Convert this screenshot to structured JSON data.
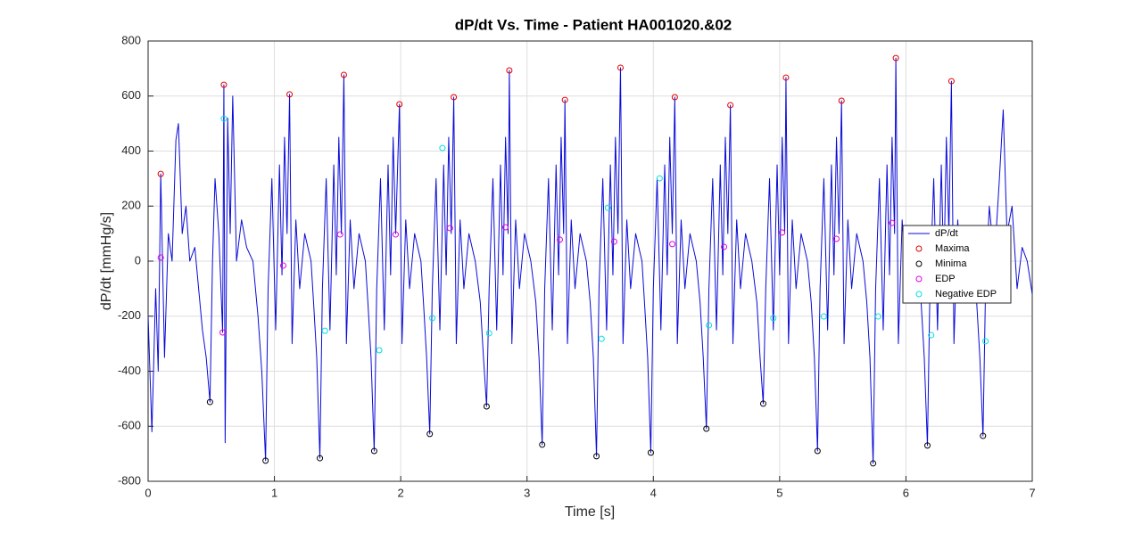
{
  "chart_data": {
    "type": "line",
    "title": "dP/dt Vs. Time - Patient HA001020.&02",
    "x_label": "Time [s]",
    "y_label": "dP/dt [mmHg/s]",
    "xlim": [
      0,
      7
    ],
    "ylim": [
      -800,
      800
    ],
    "xticks": [
      0,
      1,
      2,
      3,
      4,
      5,
      6,
      7
    ],
    "yticks": [
      -800,
      -600,
      -400,
      -200,
      0,
      200,
      400,
      600,
      800
    ],
    "grid": true,
    "legend": "right",
    "series": [
      {
        "name": "dP/dt",
        "color": "#0a0ad8",
        "style": "line",
        "x": [
          0,
          0.03,
          0.06,
          0.08,
          0.1,
          0.13,
          0.16,
          0.19,
          0.22,
          0.24,
          0.27,
          0.3,
          0.33,
          0.37,
          0.4,
          0.43,
          0.46,
          0.49,
          0.51,
          0.53,
          0.56,
          0.59,
          0.6,
          0.61,
          0.63,
          0.65,
          0.67,
          0.7,
          0.74,
          0.78,
          0.83,
          0.87,
          0.9,
          0.93,
          0.95,
          0.98,
          1.01,
          1.04,
          1.06,
          1.08,
          1.1,
          1.12,
          1.14,
          1.17,
          1.2,
          1.24,
          1.29,
          1.31,
          1.335,
          1.36,
          1.38,
          1.41,
          1.44,
          1.47,
          1.49,
          1.51,
          1.53,
          1.55,
          1.57,
          1.6,
          1.63,
          1.67,
          1.72,
          1.74,
          1.765,
          1.79,
          1.81,
          1.84,
          1.87,
          1.9,
          1.92,
          1.94,
          1.96,
          1.99,
          2.01,
          2.04,
          2.07,
          2.11,
          2.16,
          2.18,
          2.205,
          2.23,
          2.25,
          2.28,
          2.31,
          2.34,
          2.36,
          2.38,
          2.4,
          2.42,
          2.44,
          2.47,
          2.5,
          2.54,
          2.59,
          2.63,
          2.655,
          2.68,
          2.7,
          2.73,
          2.76,
          2.79,
          2.81,
          2.83,
          2.85,
          2.86,
          2.88,
          2.91,
          2.94,
          2.98,
          3.03,
          3.07,
          3.095,
          3.12,
          3.14,
          3.17,
          3.2,
          3.23,
          3.25,
          3.27,
          3.29,
          3.3,
          3.32,
          3.35,
          3.38,
          3.42,
          3.47,
          3.5,
          3.525,
          3.55,
          3.57,
          3.6,
          3.63,
          3.66,
          3.68,
          3.7,
          3.72,
          3.74,
          3.76,
          3.79,
          3.82,
          3.86,
          3.91,
          3.93,
          3.955,
          3.98,
          4.0,
          4.03,
          4.06,
          4.09,
          4.11,
          4.13,
          4.15,
          4.17,
          4.19,
          4.22,
          4.25,
          4.29,
          4.34,
          4.37,
          4.395,
          4.42,
          4.44,
          4.47,
          4.5,
          4.53,
          4.55,
          4.57,
          4.59,
          4.61,
          4.63,
          4.66,
          4.69,
          4.73,
          4.78,
          4.82,
          4.845,
          4.87,
          4.89,
          4.92,
          4.95,
          4.98,
          5.0,
          5.02,
          5.04,
          5.05,
          5.07,
          5.1,
          5.13,
          5.17,
          5.22,
          5.25,
          5.275,
          5.3,
          5.32,
          5.35,
          5.38,
          5.41,
          5.43,
          5.45,
          5.47,
          5.49,
          5.51,
          5.54,
          5.57,
          5.61,
          5.66,
          5.69,
          5.715,
          5.74,
          5.76,
          5.79,
          5.82,
          5.85,
          5.87,
          5.89,
          5.91,
          5.92,
          5.94,
          5.97,
          6.0,
          6.04,
          6.09,
          6.12,
          6.145,
          6.17,
          6.19,
          6.22,
          6.25,
          6.28,
          6.3,
          6.32,
          6.34,
          6.36,
          6.38,
          6.41,
          6.44,
          6.48,
          6.53,
          6.56,
          6.585,
          6.61,
          6.63,
          6.66,
          6.7,
          6.74,
          6.77,
          6.8,
          6.84,
          6.88,
          6.92,
          6.96,
          7.0
        ],
        "values": [
          -200,
          -620,
          -100,
          -400,
          317,
          -350,
          100,
          0,
          440,
          500,
          100,
          200,
          0,
          50,
          -100,
          -250,
          -350,
          -512,
          0,
          300,
          100,
          -259,
          641,
          -660,
          520,
          100,
          600,
          0,
          150,
          50,
          0,
          -200,
          -400,
          -725,
          -100,
          300,
          -250,
          350,
          -50,
          450,
          100,
          606,
          -300,
          150,
          -100,
          100,
          0,
          -150,
          -350,
          -716,
          -100,
          300,
          -250,
          350,
          -50,
          450,
          100,
          677,
          -300,
          150,
          -100,
          100,
          0,
          -150,
          -350,
          -690,
          -100,
          300,
          -250,
          350,
          -50,
          450,
          100,
          570,
          -300,
          150,
          -100,
          100,
          0,
          -150,
          -350,
          -628,
          -100,
          300,
          -250,
          350,
          -50,
          450,
          100,
          596,
          -300,
          150,
          -100,
          100,
          0,
          -150,
          -350,
          -528,
          -100,
          300,
          -250,
          350,
          -50,
          450,
          100,
          693,
          -300,
          150,
          -100,
          100,
          0,
          -150,
          -350,
          -667,
          -100,
          300,
          -250,
          350,
          -50,
          450,
          100,
          586,
          -300,
          150,
          -100,
          100,
          0,
          -150,
          -350,
          -709,
          -100,
          300,
          -250,
          350,
          -50,
          450,
          100,
          703,
          -300,
          150,
          -100,
          100,
          0,
          -150,
          -350,
          -696,
          -100,
          300,
          -250,
          350,
          -50,
          450,
          100,
          596,
          -300,
          150,
          -100,
          100,
          0,
          -150,
          -350,
          -609,
          -100,
          300,
          -250,
          350,
          -50,
          450,
          100,
          567,
          -300,
          150,
          -100,
          100,
          0,
          -150,
          -350,
          -518,
          -100,
          300,
          -250,
          350,
          -50,
          450,
          100,
          667,
          -300,
          150,
          -100,
          100,
          0,
          -150,
          -350,
          -690,
          -100,
          300,
          -250,
          350,
          -50,
          450,
          100,
          583,
          -300,
          150,
          -100,
          100,
          0,
          -150,
          -350,
          -735,
          -100,
          300,
          -250,
          350,
          -50,
          450,
          100,
          738,
          -300,
          150,
          -100,
          100,
          0,
          -150,
          -350,
          -670,
          -100,
          300,
          -250,
          350,
          -50,
          450,
          100,
          654,
          -300,
          150,
          -100,
          100,
          0,
          -150,
          -350,
          -635,
          -100,
          200,
          0,
          300,
          550,
          100,
          200,
          -100,
          50,
          0,
          -120
        ]
      },
      {
        "name": "Maxima",
        "color": "#e00000",
        "style": "marker",
        "x": [
          0.1,
          0.6,
          1.12,
          1.55,
          1.99,
          2.42,
          2.86,
          3.3,
          3.74,
          4.17,
          4.61,
          5.05,
          5.49,
          5.92,
          6.36
        ],
        "values": [
          317,
          641,
          606,
          677,
          570,
          596,
          693,
          586,
          703,
          596,
          567,
          667,
          583,
          738,
          654
        ]
      },
      {
        "name": "Minima",
        "color": "#000000",
        "style": "marker",
        "x": [
          0.49,
          0.93,
          1.36,
          1.79,
          2.23,
          2.68,
          3.12,
          3.55,
          3.98,
          4.42,
          4.87,
          5.3,
          5.74,
          6.17,
          6.61
        ],
        "values": [
          -512,
          -725,
          -716,
          -690,
          -628,
          -528,
          -667,
          -709,
          -696,
          -609,
          -518,
          -690,
          -735,
          -670,
          -635
        ]
      },
      {
        "name": "EDP",
        "color": "#e000e0",
        "style": "marker",
        "x": [
          0.1,
          0.59,
          1.07,
          1.52,
          1.96,
          2.39,
          2.83,
          3.26,
          3.69,
          4.15,
          4.56,
          5.02,
          5.45,
          5.89
        ],
        "values": [
          13,
          -259,
          -16,
          97,
          97,
          120,
          123,
          78,
          71,
          62,
          52,
          104,
          81,
          139
        ]
      },
      {
        "name": "Negative EDP",
        "color": "#00e0e0",
        "style": "marker",
        "x": [
          0.6,
          1.4,
          1.83,
          2.25,
          2.33,
          2.7,
          3.59,
          3.64,
          4.05,
          4.44,
          4.95,
          5.35,
          5.78,
          6.2,
          6.63
        ],
        "values": [
          518,
          -253,
          -324,
          -207,
          411,
          -262,
          -282,
          194,
          301,
          -233,
          -207,
          -201,
          -201,
          -269,
          -291
        ]
      }
    ]
  }
}
